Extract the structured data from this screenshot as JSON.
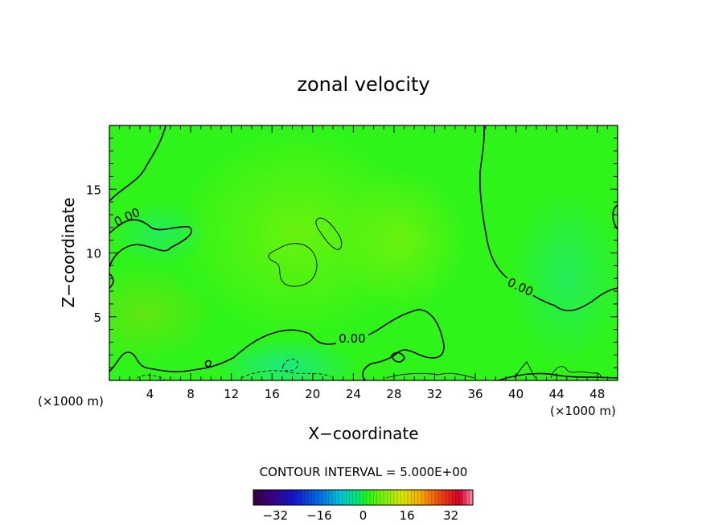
{
  "chart_data": {
    "type": "heatmap",
    "title": "zonal velocity",
    "xlabel": "X−coordinate",
    "ylabel": "Z−coordinate",
    "x_unit_left": "(×1000 m)",
    "x_unit_right": "(×1000 m)",
    "xlim": [
      0,
      50
    ],
    "ylim": [
      0,
      20
    ],
    "x_ticks": [
      4,
      8,
      12,
      16,
      20,
      24,
      28,
      32,
      36,
      40,
      44,
      48
    ],
    "x_tick_labels": [
      "4",
      "8",
      "12",
      "16",
      "20",
      "24",
      "28",
      "32",
      "36",
      "40",
      "44",
      "48"
    ],
    "y_ticks": [
      5,
      10,
      15
    ],
    "y_tick_labels": [
      "5",
      "10",
      "15"
    ],
    "contour_interval_text": "CONTOUR INTERVAL = 5.000E+00",
    "contour_labels": [
      "0.00",
      "0.00",
      "0.00"
    ],
    "colorbar": {
      "range": [
        -40,
        40
      ],
      "ticks": [
        -32,
        -16,
        0,
        16,
        32
      ],
      "tick_labels": [
        "−32",
        "−16",
        "0",
        "16",
        "32"
      ]
    },
    "field_summary": "values near 0 everywhere (green), weak positive region center-left (x 10-30, z 3-15), weak negative near bottom x 14-22 and right x 40-50"
  }
}
